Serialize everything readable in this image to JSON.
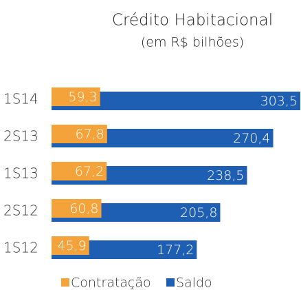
{
  "chart_data": {
    "type": "bar",
    "orientation": "horizontal",
    "overlap": true,
    "title": "Crédito Habitacional",
    "subtitle": "(em R$ bilhões)",
    "categories": [
      "1S14",
      "2S13",
      "1S13",
      "2S12",
      "1S12"
    ],
    "series": [
      {
        "name": "Contratação",
        "color": "#f4a23a",
        "values": [
          59.3,
          67.8,
          67.2,
          60.8,
          45.9
        ],
        "value_labels": [
          "59,3",
          "67,8",
          "67,2",
          "60,8",
          "45,9"
        ]
      },
      {
        "name": "Saldo",
        "color": "#1f5fb3",
        "values": [
          303.5,
          270.4,
          238.5,
          205.8,
          177.2
        ],
        "value_labels": [
          "303,5",
          "270,4",
          "238,5",
          "205,8",
          "177,2"
        ]
      }
    ],
    "legend": "bottom"
  }
}
